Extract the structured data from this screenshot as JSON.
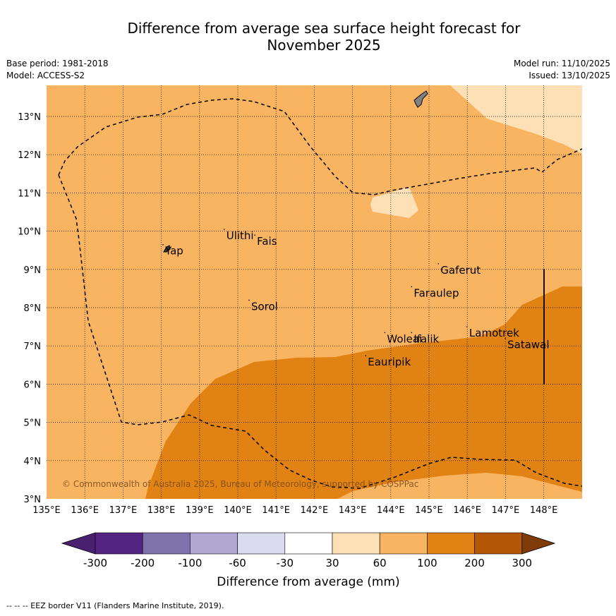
{
  "title": {
    "line1": "Difference from average sea surface height forecast for",
    "line2": "November 2025"
  },
  "meta": {
    "base_period": "Base period: 1981-2018",
    "model": "Model: ACCESS-S2",
    "model_run": "Model run: 11/10/2025",
    "issued": "Issued: 13/10/2025"
  },
  "map": {
    "lon_labels": [
      "135°E",
      "136°E",
      "137°E",
      "138°E",
      "139°E",
      "140°E",
      "141°E",
      "142°E",
      "143°E",
      "144°E",
      "145°E",
      "146°E",
      "147°E",
      "148°E"
    ],
    "lat_labels": [
      "3°N",
      "4°N",
      "5°N",
      "6°N",
      "7°N",
      "8°N",
      "9°N",
      "10°N",
      "11°N",
      "12°N",
      "13°N"
    ],
    "copyright": "© Commonwealth of Australia 2025, Bureau of Meteorology, supported by COSPPac",
    "places": [
      {
        "name": "Ulithi",
        "lon": 139.7,
        "lat": 9.9
      },
      {
        "name": "Fais",
        "lon": 140.5,
        "lat": 9.75
      },
      {
        "name": "Yap",
        "lon": 138.1,
        "lat": 9.5
      },
      {
        "name": "Gaferut",
        "lon": 145.3,
        "lat": 9.0
      },
      {
        "name": "Faraulep",
        "lon": 144.6,
        "lat": 8.4
      },
      {
        "name": "Sorol",
        "lon": 140.35,
        "lat": 8.05
      },
      {
        "name": "Lamotrek",
        "lon": 146.05,
        "lat": 7.35
      },
      {
        "name": "Woleai",
        "lon": 143.9,
        "lat": 7.2
      },
      {
        "name": "Ifalik",
        "lon": 144.6,
        "lat": 7.2
      },
      {
        "name": "Satawal",
        "lon": 147.05,
        "lat": 7.05
      },
      {
        "name": "Eauripik",
        "lon": 143.4,
        "lat": 6.6
      }
    ]
  },
  "legend": {
    "tick_labels": [
      "-300",
      "-200",
      "-100",
      "-60",
      "-30",
      "30",
      "60",
      "100",
      "200",
      "300"
    ],
    "colors": [
      "#4a2070",
      "#542483",
      "#7e72ad",
      "#b0a8d3",
      "#dadbee",
      "#ffffff",
      "#fee0b6",
      "#f9b461",
      "#e08214",
      "#b35806",
      "#7f3b08"
    ],
    "label": "Difference from average (mm)"
  },
  "footer": "--  --  -- EEZ border V11 (Flanders Marine Institute, 2019)."
}
